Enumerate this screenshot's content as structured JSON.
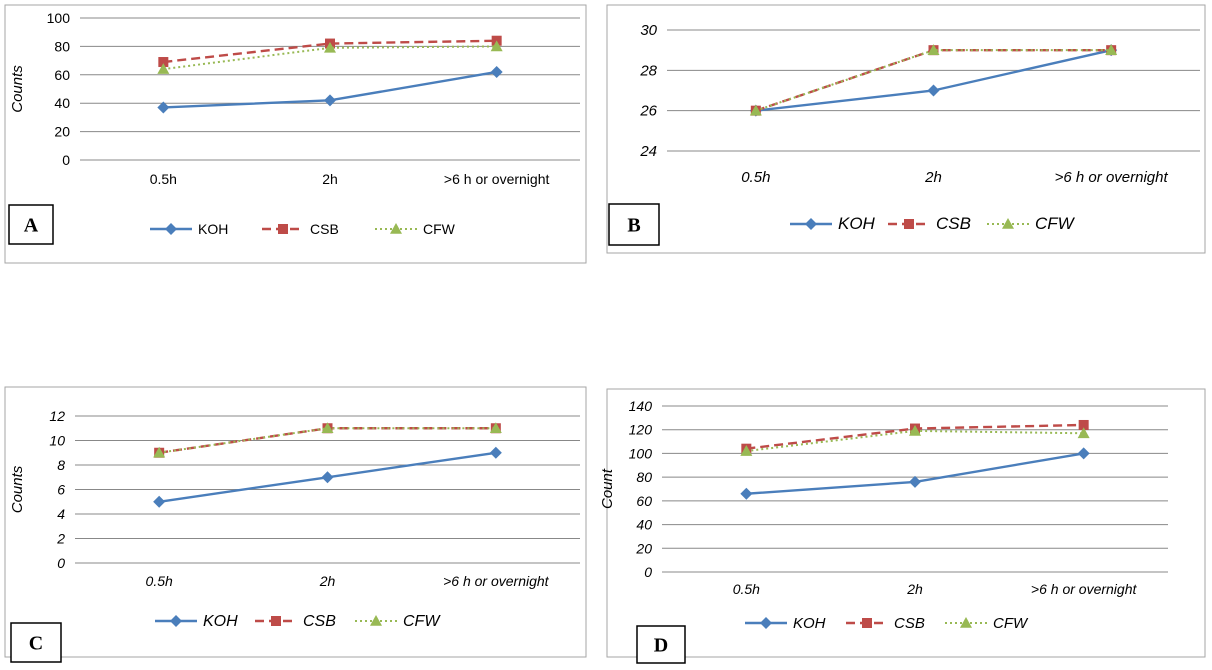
{
  "colors": {
    "koh": "#4a7ebb",
    "csb": "#be4b48",
    "cfw": "#98b954",
    "grid": "#888888",
    "frame": "#a6a6a6",
    "text": "#000000"
  },
  "chart_data": [
    {
      "type": "line",
      "panel_label": "A",
      "ylabel": "Counts",
      "ylim": [
        0,
        100
      ],
      "yticks": [
        0,
        20,
        40,
        60,
        80,
        100
      ],
      "categories": [
        "0.5h",
        "2h",
        ">6 h or overnight"
      ],
      "italic_ticks": false,
      "grid": true,
      "legend": "bottom",
      "series": [
        {
          "name": "KOH",
          "values": [
            37,
            42,
            62
          ]
        },
        {
          "name": "CSB",
          "values": [
            69,
            82,
            84
          ]
        },
        {
          "name": "CFW",
          "values": [
            64,
            79,
            80
          ]
        }
      ]
    },
    {
      "type": "line",
      "panel_label": "B",
      "ylabel": "",
      "ylim": [
        24,
        30
      ],
      "yticks": [
        24,
        26,
        28,
        30
      ],
      "categories": [
        "0.5h",
        "2h",
        ">6 h or overnight"
      ],
      "italic_ticks": true,
      "grid": true,
      "legend": "bottom",
      "series": [
        {
          "name": "KOH",
          "values": [
            26,
            27,
            29
          ]
        },
        {
          "name": "CSB",
          "values": [
            26,
            29,
            29
          ]
        },
        {
          "name": "CFW",
          "values": [
            26,
            29,
            29
          ]
        }
      ]
    },
    {
      "type": "line",
      "panel_label": "C",
      "ylabel": "Counts",
      "ylim": [
        0,
        12
      ],
      "yticks": [
        0,
        2,
        4,
        6,
        8,
        10,
        12
      ],
      "categories": [
        "0.5h",
        "2h",
        ">6 h or overnight"
      ],
      "italic_ticks": true,
      "grid": true,
      "legend": "bottom",
      "series": [
        {
          "name": "KOH",
          "values": [
            5,
            7,
            9
          ]
        },
        {
          "name": "CSB",
          "values": [
            9,
            11,
            11
          ]
        },
        {
          "name": "CFW",
          "values": [
            9,
            11,
            11
          ]
        }
      ]
    },
    {
      "type": "line",
      "panel_label": "D",
      "ylabel": "Count",
      "ylim": [
        0,
        140
      ],
      "yticks": [
        0,
        20,
        40,
        60,
        80,
        100,
        120,
        140
      ],
      "categories": [
        "0.5h",
        "2h",
        ">6 h or overnight"
      ],
      "italic_ticks": true,
      "grid": true,
      "legend": "bottom",
      "series": [
        {
          "name": "KOH",
          "values": [
            66,
            76,
            100
          ]
        },
        {
          "name": "CSB",
          "values": [
            104,
            121,
            124
          ]
        },
        {
          "name": "CFW",
          "values": [
            102,
            119,
            117
          ]
        }
      ]
    }
  ]
}
